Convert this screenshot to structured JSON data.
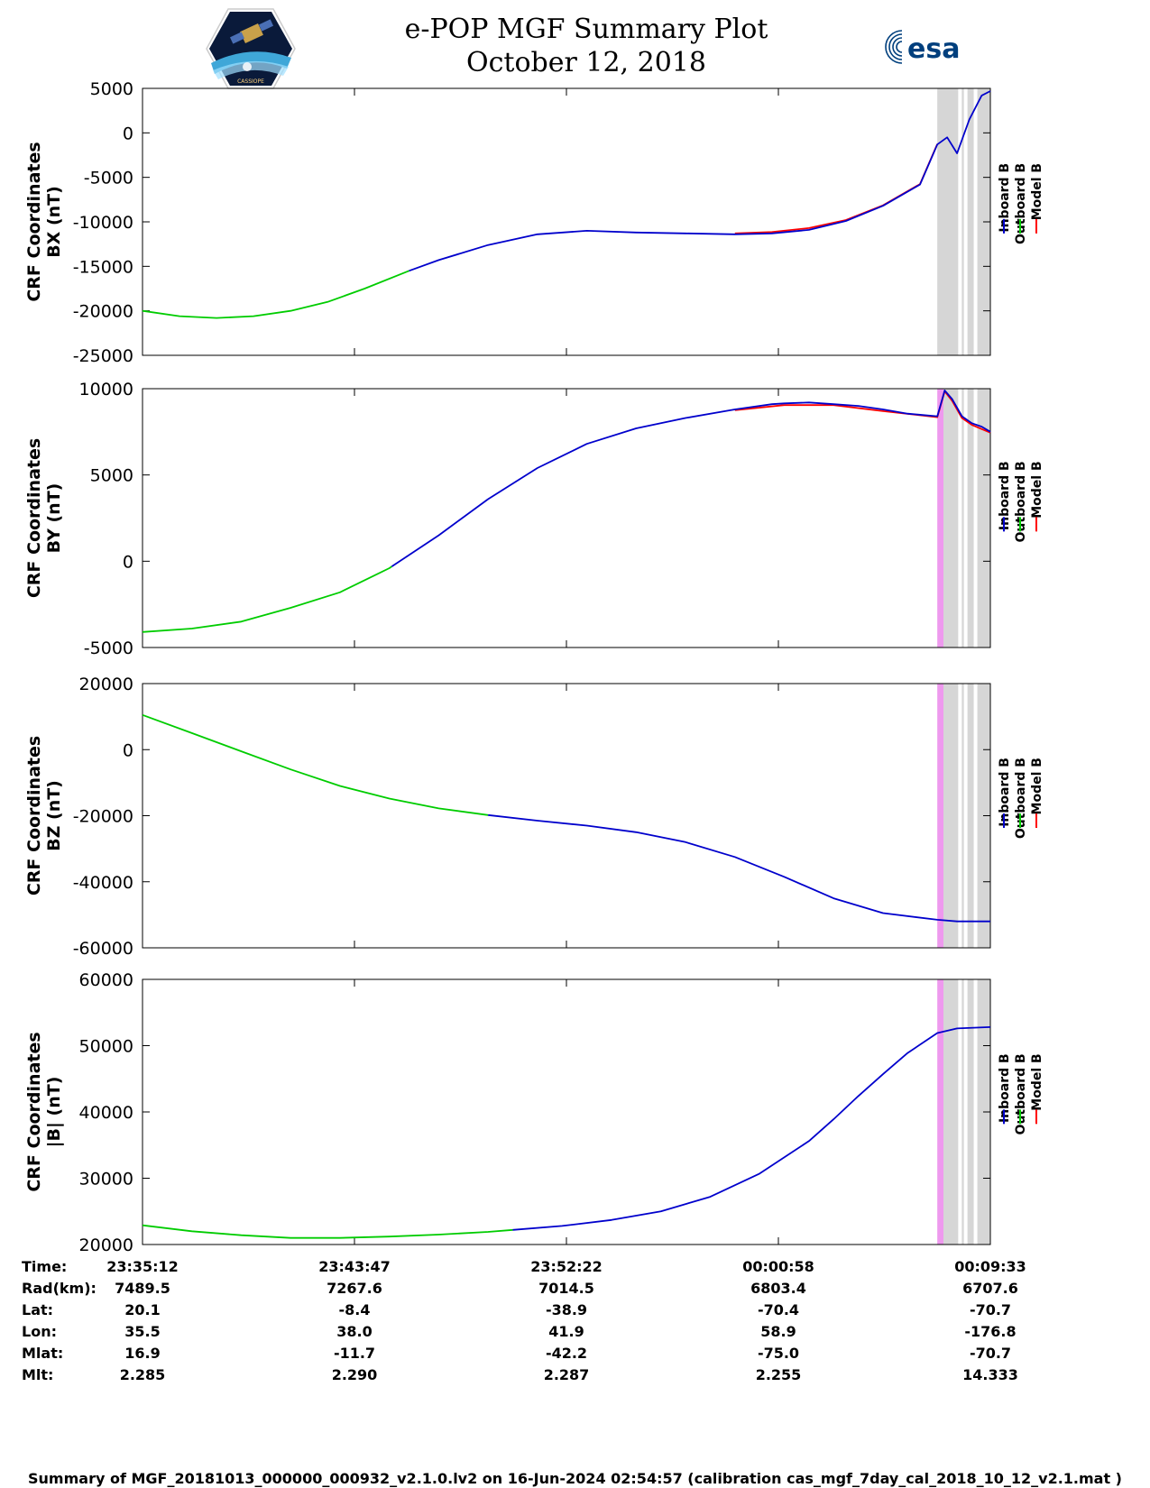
{
  "header": {
    "title_line1": "e-POP MGF Summary Plot",
    "title_line2": "October 12, 2018",
    "left_logo_text": "CASSIOPE",
    "right_logo_text": "esa"
  },
  "colors": {
    "inboard": "#0000cc",
    "outboard": "#00cc00",
    "model": "#ff0000",
    "shade_gray": "#d6d6d6",
    "shade_pink": "#ee99ee"
  },
  "legend": [
    "Inboard B",
    "Outboard B",
    "Model B"
  ],
  "chart_data": [
    {
      "type": "line",
      "ylabel_line1": "CRF Coordinates",
      "ylabel_line2": "BX (nT)",
      "ylim": [
        -25000,
        5000
      ],
      "yticks": [
        5000,
        0,
        -5000,
        -10000,
        -15000,
        -20000,
        -25000
      ],
      "xlim_minutes": [
        0,
        34.35
      ],
      "outboard": {
        "name": "Outboard B",
        "x": [
          0,
          1.5,
          3,
          4.5,
          6,
          7.5,
          9,
          10.8
        ],
        "y": [
          -20000,
          -20600,
          -20800,
          -20600,
          -20000,
          -19000,
          -17500,
          -15500
        ]
      },
      "inboard": {
        "name": "Inboard B",
        "x": [
          10.8,
          12,
          14,
          16,
          18,
          20,
          22,
          24,
          25.5,
          27,
          28.5,
          30,
          31.5,
          32.2,
          32.6,
          33,
          33.5,
          34,
          34.35
        ],
        "y": [
          -15500,
          -14300,
          -12600,
          -11400,
          -11000,
          -11200,
          -11300,
          -11400,
          -11300,
          -10900,
          -9900,
          -8200,
          -5800,
          -1300,
          -500,
          -2300,
          1500,
          4200,
          4700
        ]
      },
      "model": {
        "name": "Model B",
        "x": [
          24,
          25.5,
          27,
          28.5,
          30,
          31.5,
          32.2
        ],
        "y": [
          -11300,
          -11150,
          -10700,
          -9800,
          -8150,
          -5750,
          -1250
        ]
      },
      "shade": [
        {
          "x0": 32.2,
          "x1": 34.35,
          "kind": "gray"
        }
      ],
      "gaps": [
        33.12,
        33.35,
        33.75
      ]
    },
    {
      "type": "line",
      "ylabel_line1": "CRF Coordinates",
      "ylabel_line2": "BY (nT)",
      "ylim": [
        -5000,
        10000
      ],
      "yticks": [
        10000,
        5000,
        0,
        -5000
      ],
      "xlim_minutes": [
        0,
        34.35
      ],
      "outboard": {
        "name": "Outboard B",
        "x": [
          0,
          2,
          4,
          6,
          8,
          10,
          10.1
        ],
        "y": [
          -4100,
          -3900,
          -3500,
          -2700,
          -1800,
          -400,
          -300
        ]
      },
      "inboard": {
        "name": "Inboard B",
        "x": [
          10.1,
          12,
          14,
          16,
          18,
          20,
          22,
          24,
          25.5,
          26,
          27,
          28,
          29,
          30,
          31,
          32.2,
          32.5,
          32.8,
          33.2,
          33.6,
          34,
          34.35
        ],
        "y": [
          -300,
          1500,
          3600,
          5400,
          6800,
          7700,
          8300,
          8800,
          9100,
          9150,
          9200,
          9100,
          9000,
          8800,
          8550,
          8400,
          9900,
          9400,
          8400,
          8000,
          7800,
          7500
        ]
      },
      "model": {
        "name": "Model B",
        "x": [
          24,
          26,
          28,
          30,
          32.2,
          32.5,
          32.8,
          33.2,
          33.6,
          34.35
        ],
        "y": [
          8750,
          9050,
          9050,
          8700,
          8350,
          9850,
          9300,
          8300,
          7900,
          7450
        ]
      },
      "shade": [
        {
          "x0": 32.2,
          "x1": 32.45,
          "kind": "pink"
        },
        {
          "x0": 32.45,
          "x1": 34.35,
          "kind": "gray"
        }
      ],
      "gaps": [
        33.12,
        33.35,
        33.75
      ]
    },
    {
      "type": "line",
      "ylabel_line1": "CRF Coordinates",
      "ylabel_line2": "BZ (nT)",
      "ylim": [
        -60000,
        20000
      ],
      "yticks": [
        20000,
        0,
        -20000,
        -40000,
        -60000
      ],
      "xlim_minutes": [
        0,
        34.35
      ],
      "outboard": {
        "name": "Outboard B",
        "x": [
          0,
          2,
          4,
          6,
          8,
          10,
          12,
          14
        ],
        "y": [
          10500,
          5000,
          -500,
          -6000,
          -11000,
          -14800,
          -17800,
          -19800
        ]
      },
      "inboard": {
        "name": "Inboard B",
        "x": [
          14,
          16,
          18,
          20,
          22,
          24,
          26,
          28,
          30,
          32.2,
          33,
          34.35
        ],
        "y": [
          -19800,
          -21500,
          -23000,
          -25000,
          -28000,
          -32500,
          -38500,
          -45000,
          -49500,
          -51500,
          -52000,
          -52000
        ]
      },
      "model": {
        "name": "Model B",
        "x": [],
        "y": []
      },
      "shade": [
        {
          "x0": 32.2,
          "x1": 32.45,
          "kind": "pink"
        },
        {
          "x0": 32.45,
          "x1": 34.35,
          "kind": "gray"
        }
      ],
      "gaps": [
        33.12,
        33.35,
        33.75
      ]
    },
    {
      "type": "line",
      "ylabel_line1": "CRF Coordinates",
      "ylabel_line2": "|B| (nT)",
      "ylim": [
        20000,
        60000
      ],
      "yticks": [
        60000,
        50000,
        40000,
        30000,
        20000
      ],
      "xlim_minutes": [
        0,
        34.35
      ],
      "outboard": {
        "name": "Outboard B",
        "x": [
          0,
          2,
          4,
          6,
          8,
          10,
          12,
          14,
          15
        ],
        "y": [
          22900,
          22000,
          21400,
          21000,
          21000,
          21200,
          21500,
          21900,
          22200
        ]
      },
      "inboard": {
        "name": "Inboard B",
        "x": [
          15,
          17,
          19,
          21,
          23,
          25,
          27,
          28,
          29,
          30,
          31,
          32.2,
          33,
          34.35
        ],
        "y": [
          22200,
          22800,
          23700,
          25000,
          27200,
          30700,
          35600,
          38900,
          42400,
          45700,
          48900,
          51900,
          52600,
          52800
        ]
      },
      "model": {
        "name": "Model B",
        "x": [],
        "y": []
      },
      "shade": [
        {
          "x0": 32.2,
          "x1": 32.45,
          "kind": "pink"
        },
        {
          "x0": 32.45,
          "x1": 34.35,
          "kind": "gray"
        }
      ],
      "gaps": [
        33.12,
        33.35,
        33.75
      ]
    }
  ],
  "ephemeris": {
    "rows": [
      {
        "key": "Time:",
        "values": [
          "23:35:12",
          "23:43:47",
          "23:52:22",
          "00:00:58",
          "00:09:33"
        ]
      },
      {
        "key": "Rad(km):",
        "values": [
          "7489.5",
          "7267.6",
          "7014.5",
          "6803.4",
          "6707.6"
        ]
      },
      {
        "key": "Lat:",
        "values": [
          "20.1",
          "-8.4",
          "-38.9",
          "-70.4",
          "-70.7"
        ]
      },
      {
        "key": "Lon:",
        "values": [
          "35.5",
          "38.0",
          "41.9",
          "58.9",
          "-176.8"
        ]
      },
      {
        "key": "Mlat:",
        "values": [
          "16.9",
          "-11.7",
          "-42.2",
          "-75.0",
          "-70.7"
        ]
      },
      {
        "key": "Mlt:",
        "values": [
          "2.285",
          "2.290",
          "2.287",
          "2.255",
          "14.333"
        ]
      }
    ]
  },
  "footer": "Summary of MGF_20181013_000000_000932_v2.1.0.lv2 on 16-Jun-2024 02:54:57 (calibration cas_mgf_7day_cal_2018_10_12_v2.1.mat )"
}
